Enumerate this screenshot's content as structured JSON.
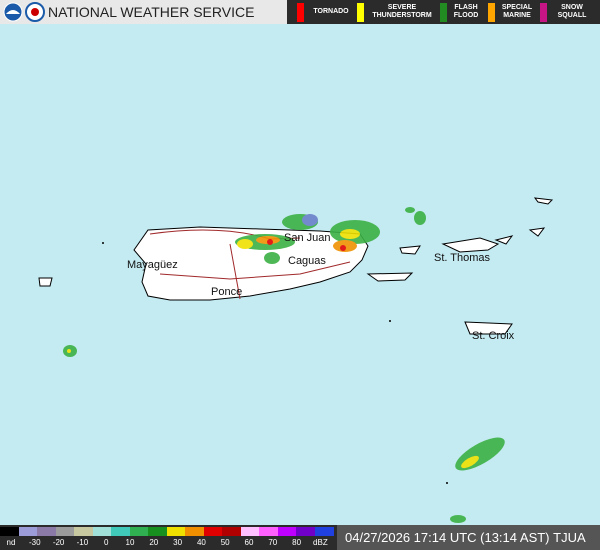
{
  "header": {
    "title": "NATIONAL WEATHER SERVICE",
    "warnings": [
      {
        "label": "TORNADO",
        "color": "#ff0000"
      },
      {
        "label": "SEVERE THUNDERSTORM",
        "color": "#ffff00"
      },
      {
        "label": "FLASH FLOOD",
        "color": "#228b22"
      },
      {
        "label": "SPECIAL MARINE",
        "color": "#ffa500"
      },
      {
        "label": "SNOW SQUALL",
        "color": "#c71585"
      }
    ]
  },
  "map": {
    "labels": [
      "Mayagüez",
      "Ponce",
      "Caguas",
      "San Juan",
      "St. Thomas",
      "St. Croix"
    ]
  },
  "scale": {
    "labels": [
      "nd",
      -30,
      -20,
      -10,
      0,
      10,
      20,
      30,
      40,
      50,
      60,
      70,
      80,
      "dBZ"
    ],
    "colors": [
      "#000000",
      "#9c9cd8",
      "#8b7aa8",
      "#9c9c9c",
      "#c8c8a0",
      "#a0e0d8",
      "#40c8b8",
      "#30b050",
      "#189020",
      "#f0e000",
      "#f09000",
      "#e00000",
      "#b00000",
      "#ffc0ff",
      "#ff60ff",
      "#c000ff",
      "#7000c8",
      "#2040e0"
    ]
  },
  "footer": {
    "timestamp": "04/27/2026 17:14 UTC (13:14 AST)",
    "station": "TJUA"
  }
}
